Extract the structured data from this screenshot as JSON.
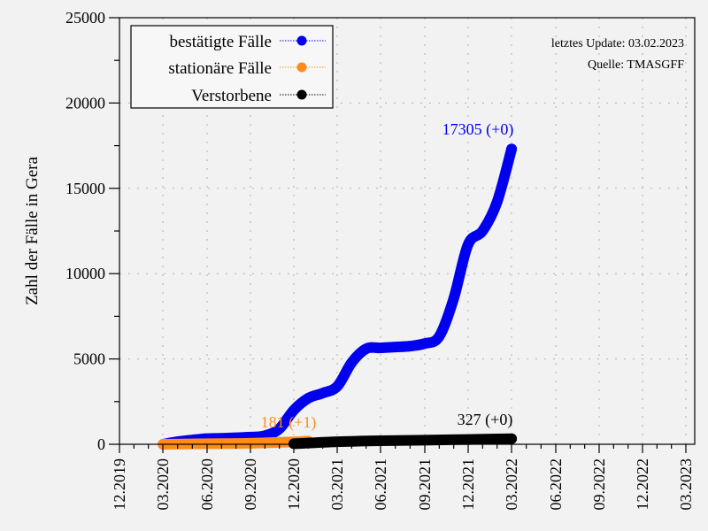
{
  "chart_data": {
    "type": "line",
    "title": "",
    "xlabel": "",
    "ylabel": "Zahl der Fälle in Gera",
    "ylim": [
      0,
      25000
    ],
    "yticks": [
      0,
      5000,
      10000,
      15000,
      20000,
      25000
    ],
    "ytick_labels": [
      "0",
      "5000",
      "10000",
      "15000",
      "20000",
      "25000"
    ],
    "xticks": [
      "12.2019",
      "03.2020",
      "06.2020",
      "09.2020",
      "12.2020",
      "03.2021",
      "06.2021",
      "09.2021",
      "12.2021",
      "03.2022",
      "06.2022",
      "09.2022",
      "12.2022",
      "03.2023"
    ],
    "grid": true,
    "legend_position": "upper left",
    "annotation_update": "letztes Update: 03.02.2023",
    "annotation_source": "Quelle: TMASGFF",
    "series": [
      {
        "name": "bestätigte Fälle",
        "color": "#0000ee",
        "end_label": "17305 (+0)",
        "x": [
          "03.2020",
          "04.2020",
          "05.2020",
          "06.2020",
          "07.2020",
          "08.2020",
          "09.2020",
          "10.2020",
          "11.2020",
          "12.2020",
          "01.2021",
          "02.2021",
          "03.2021",
          "04.2021",
          "05.2021",
          "06.2021",
          "07.2021",
          "08.2021",
          "09.2021",
          "10.2021",
          "11.2021",
          "12.2021",
          "01.2022",
          "02.2022",
          "03.2022"
        ],
        "values": [
          0,
          150,
          250,
          330,
          350,
          380,
          420,
          500,
          900,
          2000,
          2700,
          3000,
          3400,
          4800,
          5600,
          5650,
          5700,
          5750,
          5900,
          6300,
          8500,
          11700,
          12500,
          14200,
          17305
        ]
      },
      {
        "name": "stationäre Fälle",
        "color": "#ff8c1a",
        "end_label": "181 (+1)",
        "x": [
          "03.2020",
          "06.2020",
          "09.2020",
          "12.2020",
          "01.2021"
        ],
        "values": [
          0,
          30,
          60,
          140,
          181
        ]
      },
      {
        "name": "Verstorbene",
        "color": "#000000",
        "end_label": "327 (+0)",
        "x": [
          "12.2020",
          "03.2021",
          "06.2021",
          "09.2021",
          "12.2021",
          "03.2022"
        ],
        "values": [
          30,
          150,
          210,
          240,
          280,
          327
        ]
      }
    ]
  }
}
